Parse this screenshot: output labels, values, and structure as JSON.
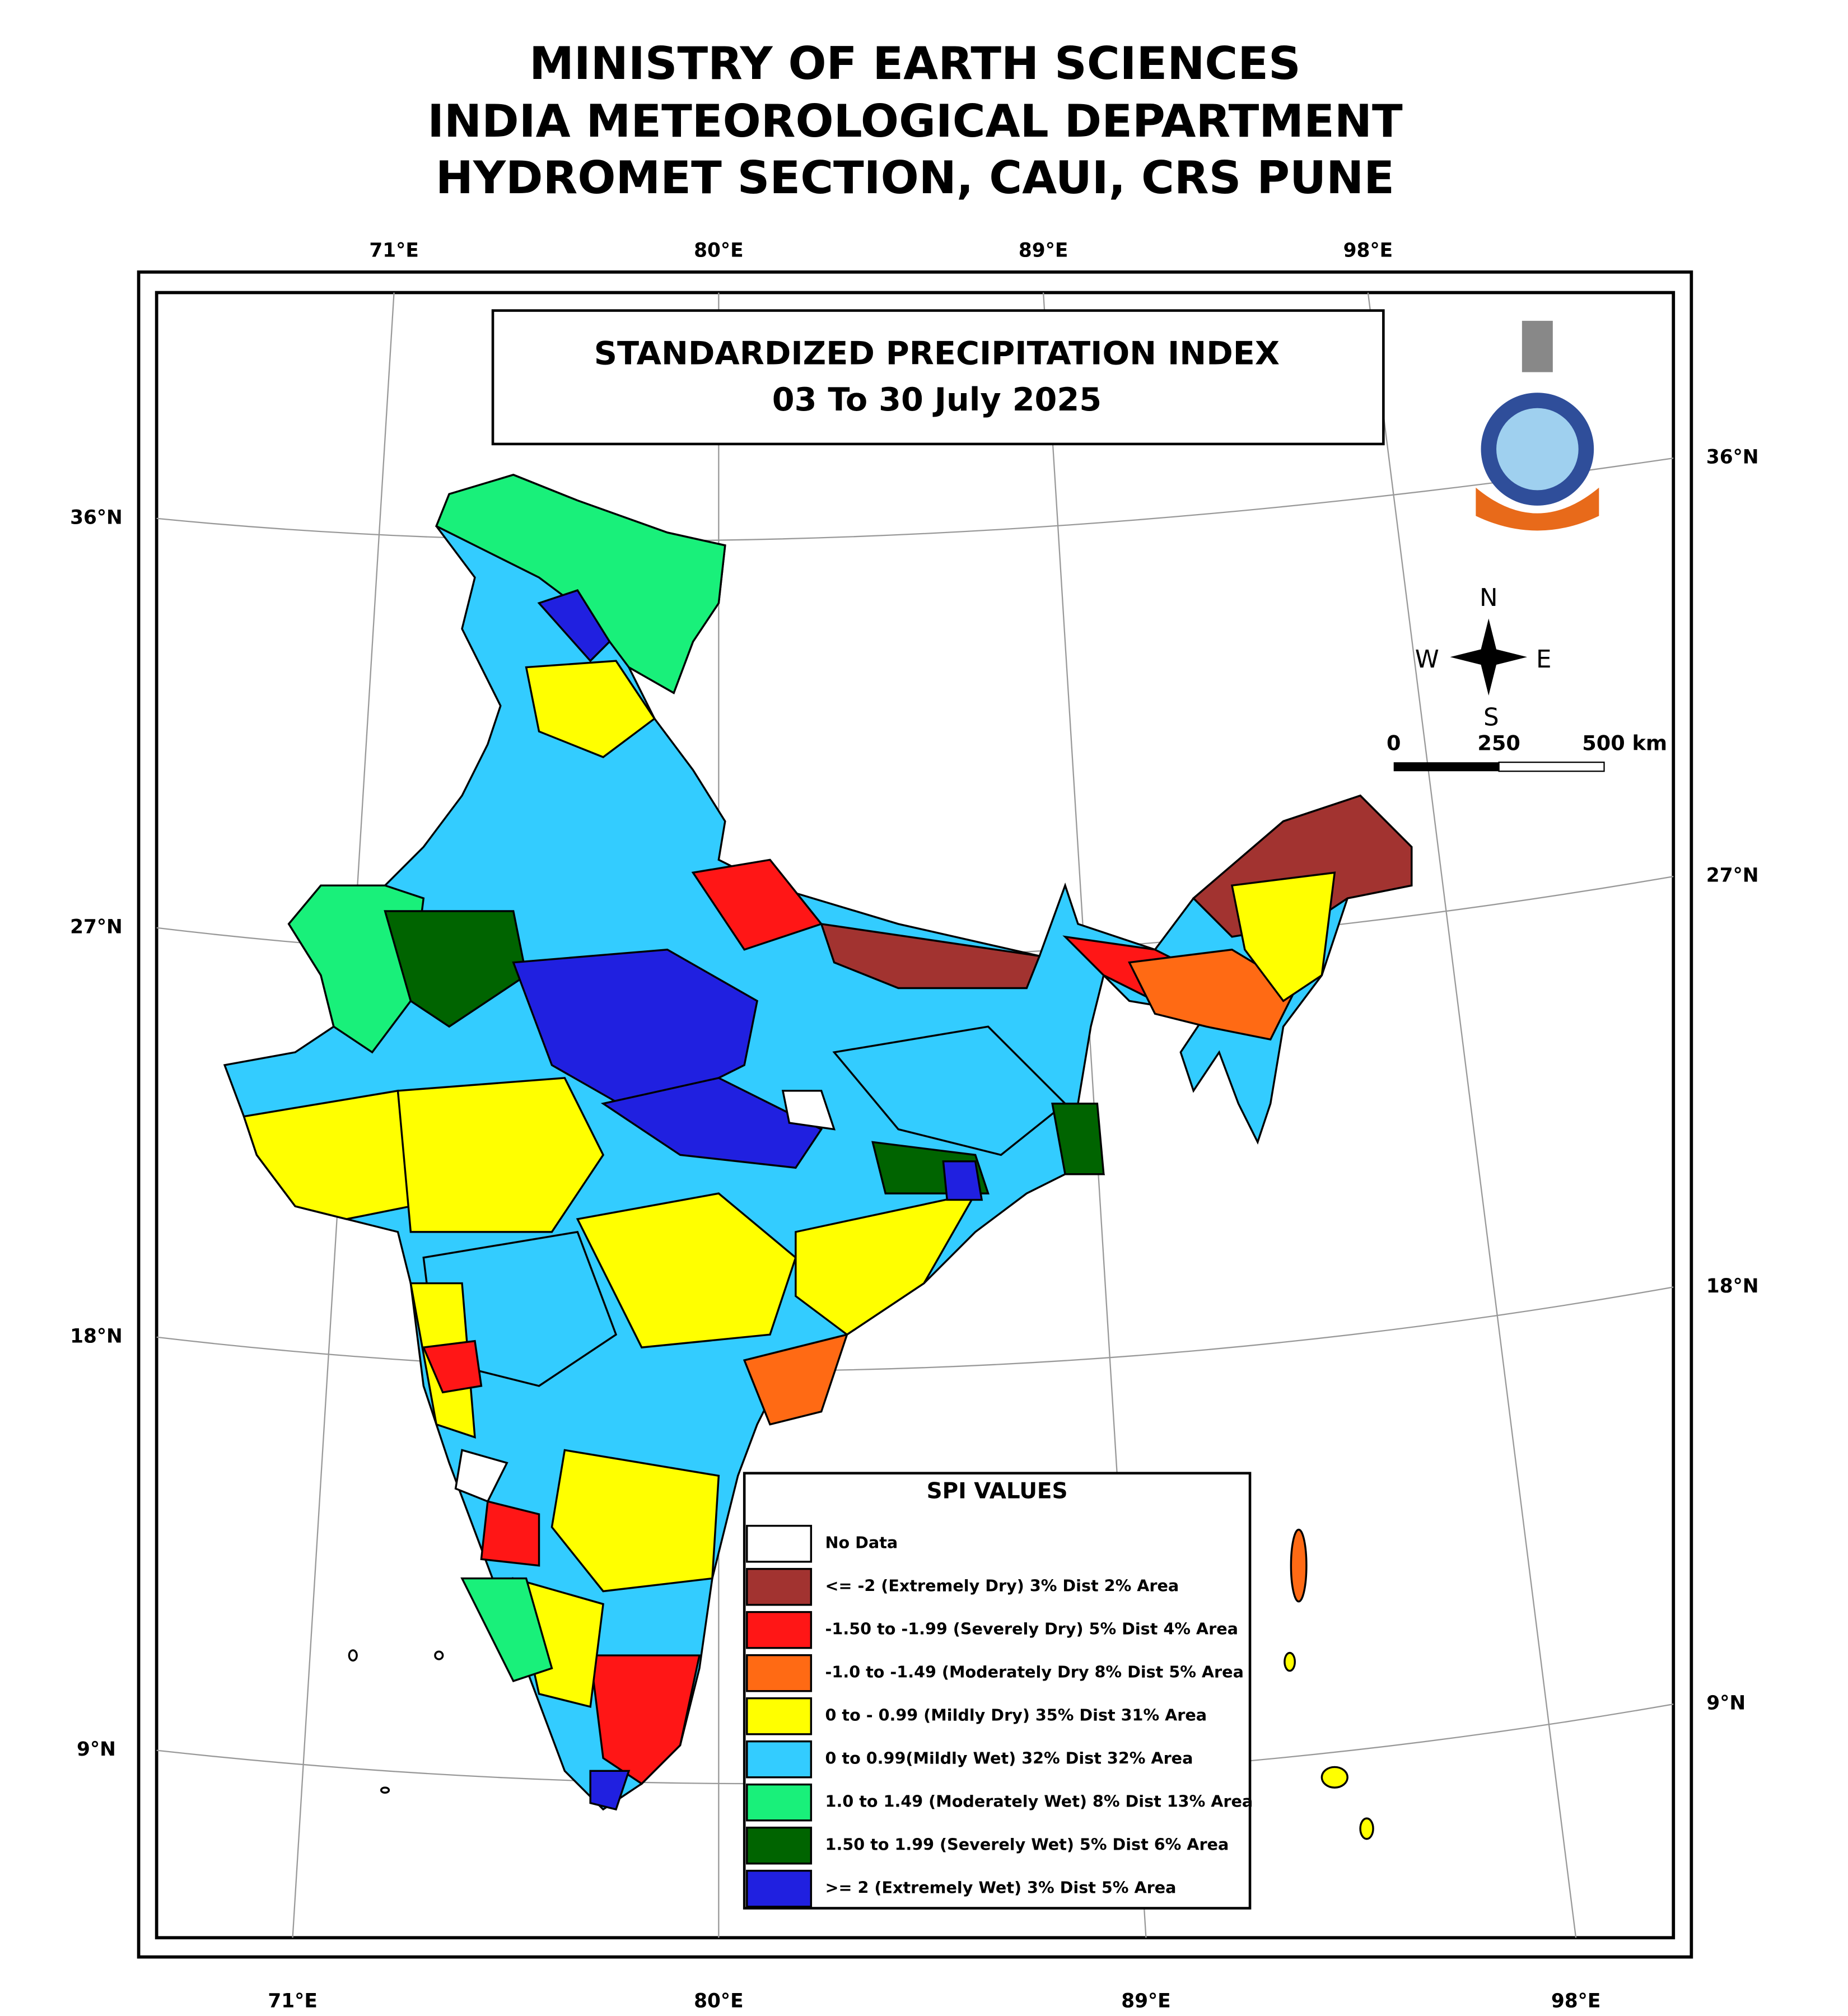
{
  "header": {
    "lines": [
      "MINISTRY OF EARTH SCIENCES",
      "INDIA METEOROLOGICAL DEPARTMENT",
      "HYDROMET SECTION, CAUI, CRS PUNE"
    ]
  },
  "map": {
    "title": "STANDARDIZED PRECIPITATION INDEX",
    "subtitle": "03 To 30 July 2025",
    "top_labels": [
      "71°E",
      "80°E",
      "89°E",
      "98°E"
    ],
    "bottom_labels": [
      "71°E",
      "80°E",
      "89°E",
      "98°E"
    ],
    "left_labels": [
      "36°N",
      "27°N",
      "18°N",
      "9°N"
    ],
    "right_labels": [
      "36°N",
      "27°N",
      "18°N",
      "9°N"
    ],
    "compass": {
      "north": "N",
      "west": "W",
      "east": "E",
      "south": "S"
    },
    "scale_bar": [
      "0",
      "250",
      "500 km"
    ]
  },
  "legend": {
    "title": "SPI VALUES",
    "items": [
      {
        "label": "No Data",
        "color": "#ffffff"
      },
      {
        "label": "<= -2 (Extremely Dry)   3% Dist   2% Area",
        "color": "#a23330"
      },
      {
        "label": "-1.50 to -1.99 (Severely Dry)  5% Dist   4% Area",
        "color": "#ff1616"
      },
      {
        "label": "-1.0 to -1.49 (Moderately Dry  8% Dist   5% Area",
        "color": "#ff6a14"
      },
      {
        "label": "0 to - 0.99 (Mildly Dry) 35% Dist  31% Area",
        "color": "#ffff00"
      },
      {
        "label": "0 to  0.99(Mildly Wet)  32% Dist  32% Area",
        "color": "#33ccff"
      },
      {
        "label": "1.0 to 1.49 (Moderately Wet)  8% Dist  13% Area",
        "color": "#19f07a"
      },
      {
        "label": "1.50 to 1.99 (Severely Wet)  5% Dist  6% Area",
        "color": "#006400"
      },
      {
        "label": ">= 2 (Extremely Wet)   3% Dist   5% Area",
        "color": "#2020e0"
      }
    ]
  }
}
